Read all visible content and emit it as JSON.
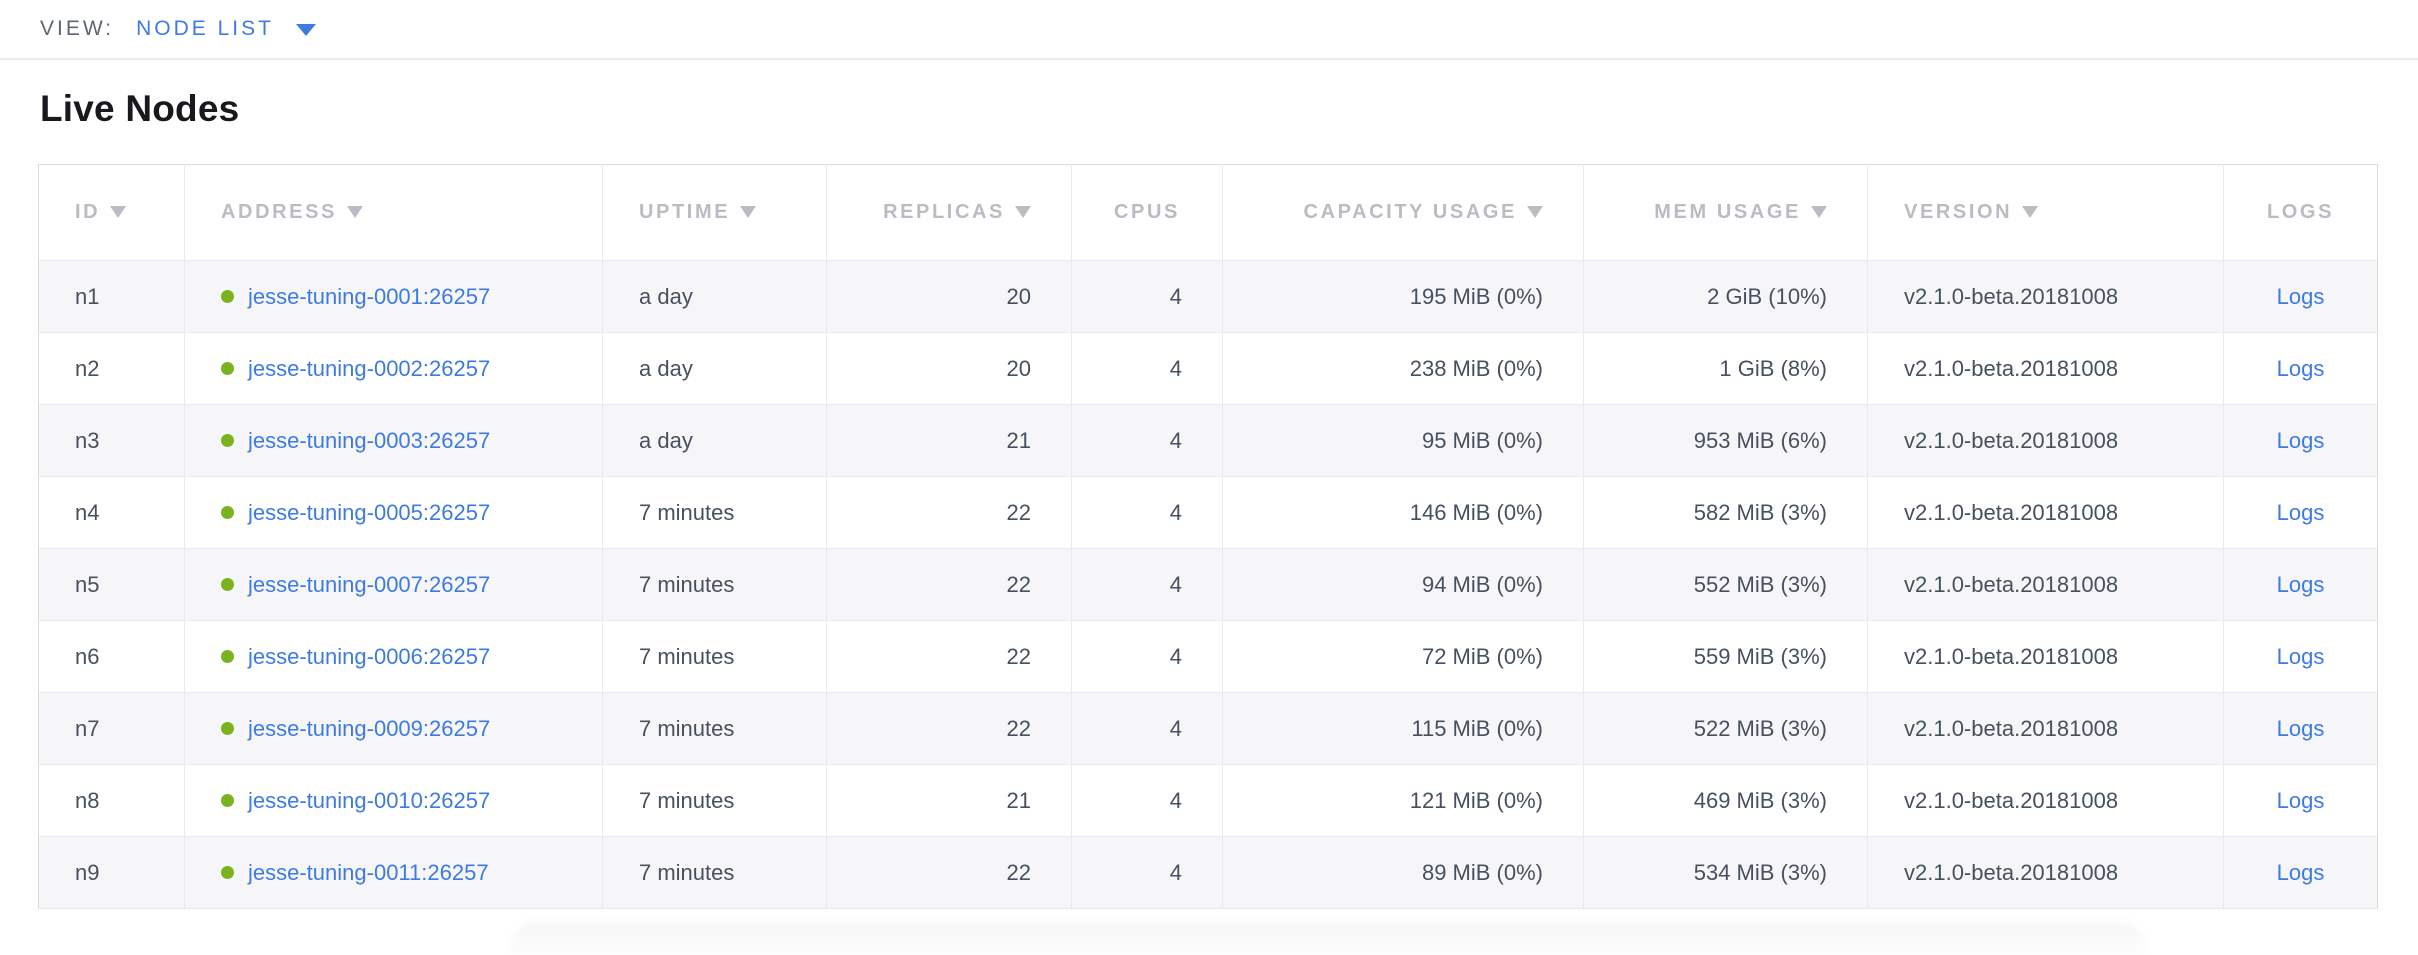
{
  "view_bar": {
    "label": "VIEW:",
    "selected_view": "NODE LIST",
    "dropdown_icon": "caret-down"
  },
  "page": {
    "title": "Live Nodes"
  },
  "table": {
    "columns": [
      {
        "key": "id",
        "label": "ID",
        "sort_arrow": true
      },
      {
        "key": "address",
        "label": "ADDRESS",
        "sort_arrow": true
      },
      {
        "key": "uptime",
        "label": "UPTIME",
        "sort_arrow": true
      },
      {
        "key": "replicas",
        "label": "REPLICAS",
        "sort_arrow": true
      },
      {
        "key": "cpus",
        "label": "CPUS",
        "sort_arrow": false
      },
      {
        "key": "capacity",
        "label": "CAPACITY USAGE",
        "sort_arrow": true
      },
      {
        "key": "mem",
        "label": "MEM USAGE",
        "sort_arrow": true
      },
      {
        "key": "version",
        "label": "VERSION",
        "sort_arrow": true
      },
      {
        "key": "logs",
        "label": "LOGS",
        "sort_arrow": false
      }
    ],
    "rows": [
      {
        "id": "n1",
        "status_icon": "green-dot",
        "address": "jesse-tuning-0001:26257",
        "uptime": "a day",
        "replicas": "20",
        "cpus": "4",
        "capacity": "195 MiB (0%)",
        "mem": "2 GiB (10%)",
        "version": "v2.1.0-beta.20181008",
        "logs": "Logs"
      },
      {
        "id": "n2",
        "status_icon": "green-dot",
        "address": "jesse-tuning-0002:26257",
        "uptime": "a day",
        "replicas": "20",
        "cpus": "4",
        "capacity": "238 MiB (0%)",
        "mem": "1 GiB (8%)",
        "version": "v2.1.0-beta.20181008",
        "logs": "Logs"
      },
      {
        "id": "n3",
        "status_icon": "green-dot",
        "address": "jesse-tuning-0003:26257",
        "uptime": "a day",
        "replicas": "21",
        "cpus": "4",
        "capacity": "95 MiB (0%)",
        "mem": "953 MiB (6%)",
        "version": "v2.1.0-beta.20181008",
        "logs": "Logs"
      },
      {
        "id": "n4",
        "status_icon": "green-dot",
        "address": "jesse-tuning-0005:26257",
        "uptime": "7 minutes",
        "replicas": "22",
        "cpus": "4",
        "capacity": "146 MiB (0%)",
        "mem": "582 MiB (3%)",
        "version": "v2.1.0-beta.20181008",
        "logs": "Logs"
      },
      {
        "id": "n5",
        "status_icon": "green-dot",
        "address": "jesse-tuning-0007:26257",
        "uptime": "7 minutes",
        "replicas": "22",
        "cpus": "4",
        "capacity": "94 MiB (0%)",
        "mem": "552 MiB (3%)",
        "version": "v2.1.0-beta.20181008",
        "logs": "Logs"
      },
      {
        "id": "n6",
        "status_icon": "green-dot",
        "address": "jesse-tuning-0006:26257",
        "uptime": "7 minutes",
        "replicas": "22",
        "cpus": "4",
        "capacity": "72 MiB (0%)",
        "mem": "559 MiB (3%)",
        "version": "v2.1.0-beta.20181008",
        "logs": "Logs"
      },
      {
        "id": "n7",
        "status_icon": "green-dot",
        "address": "jesse-tuning-0009:26257",
        "uptime": "7 minutes",
        "replicas": "22",
        "cpus": "4",
        "capacity": "115 MiB (0%)",
        "mem": "522 MiB (3%)",
        "version": "v2.1.0-beta.20181008",
        "logs": "Logs"
      },
      {
        "id": "n8",
        "status_icon": "green-dot",
        "address": "jesse-tuning-0010:26257",
        "uptime": "7 minutes",
        "replicas": "21",
        "cpus": "4",
        "capacity": "121 MiB (0%)",
        "mem": "469 MiB (3%)",
        "version": "v2.1.0-beta.20181008",
        "logs": "Logs"
      },
      {
        "id": "n9",
        "status_icon": "green-dot",
        "address": "jesse-tuning-0011:26257",
        "uptime": "7 minutes",
        "replicas": "22",
        "cpus": "4",
        "capacity": "89 MiB (0%)",
        "mem": "534 MiB (3%)",
        "version": "v2.1.0-beta.20181008",
        "logs": "Logs"
      }
    ]
  },
  "colors": {
    "link_blue": "#3d7be0",
    "healthy_dot_green": "#7bb31f",
    "header_gray": "#b9bcc2",
    "body_text": "#475060",
    "row_stripe": "#f6f6f8"
  }
}
